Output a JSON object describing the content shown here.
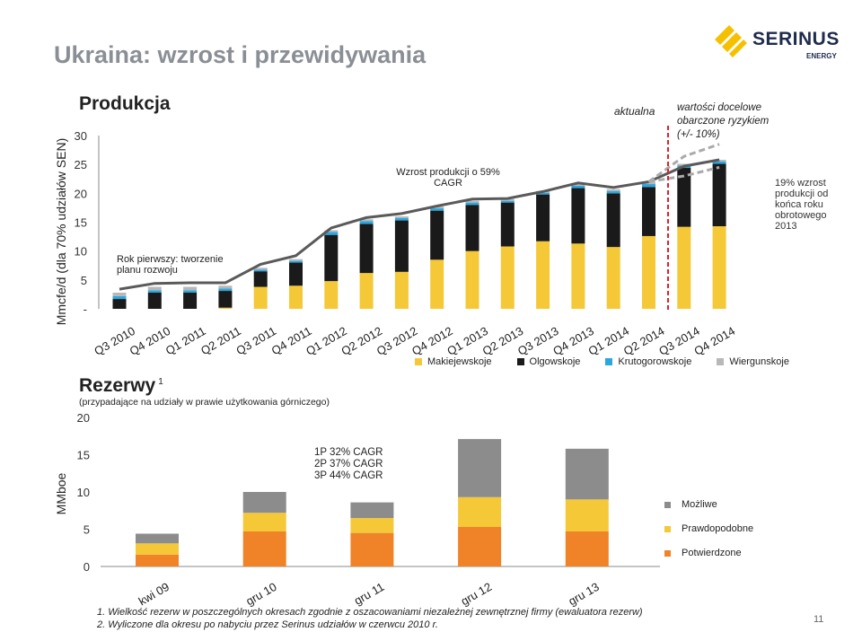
{
  "title": "Ukraina: wzrost i przewidywania",
  "logo": {
    "name": "SERINUS",
    "sub": "ENERGY"
  },
  "page_number": "11",
  "colors": {
    "makiejewskoje": "#f5c838",
    "olgowskoje": "#1a1a1a",
    "krutogorowskoje": "#2aa7e0",
    "wiergunskoje": "#b8b8b8",
    "mozliwe": "#8c8c8c",
    "prawdopodobne": "#f5c838",
    "potwierdzone": "#f08228",
    "line": "#5a5a5a",
    "title": "#8a8f96",
    "red_divider": "#e0202a"
  },
  "top": {
    "heading": "Produkcja",
    "actual_label": "aktualna",
    "target_label": "wartości docelowe obarczone ryzykiem (+/- 10%)",
    "annot_start": "Rok pierwszy: tworzenie planu rozwoju",
    "annot_cagr": "Wzrost produkcji o 59% CAGR",
    "annot_right": "19% wzrost produkcji od końca roku obrotowego 2013",
    "legend": [
      "Makiejewskoje",
      "Olgowskoje",
      "Krutogorowskoje",
      "Wiergunskoje"
    ]
  },
  "bottom": {
    "heading": "Rezerwy",
    "heading_sup": "1",
    "subheading": "(przypadające na udziały w prawie użytkowania górniczego)",
    "cagr_lines": [
      "1P 32% CAGR",
      "2P 37% CAGR",
      "3P 44% CAGR"
    ],
    "legend": [
      "Możliwe",
      "Prawdopodobne",
      "Potwierdzone"
    ]
  },
  "footnotes": [
    "1.  Wielkość rezerw w poszczególnych okresach zgodnie z oszacowaniami niezależnej zewnętrznej firmy (ewaluatora rezerw)",
    "2.  Wyliczone dla okresu po nabyciu przez Serinus udziałów w czerwcu 2010 r."
  ],
  "chart_data": [
    {
      "type": "bar",
      "stacked": true,
      "ylabel": "Mmcfe/d  (dla 70% udziałów SEN)",
      "ylim": [
        0,
        30
      ],
      "yticks": [
        "-",
        "5",
        "10",
        "15",
        "20",
        "25",
        "30"
      ],
      "categories": [
        "Q3 2010",
        "Q4 2010",
        "Q1 2011",
        "Q2 2011",
        "Q3 2011",
        "Q4 2011",
        "Q1 2012",
        "Q2 2012",
        "Q3 2012",
        "Q4 2012",
        "Q1 2013",
        "Q2 2013",
        "Q3 2013",
        "Q4 2013",
        "Q1 2014",
        "Q2 2014",
        "Q3 2014",
        "Q4 2014"
      ],
      "series": [
        {
          "name": "Makiejewskoje",
          "values": [
            0,
            0,
            0,
            0.2,
            3.8,
            4.0,
            4.8,
            6.2,
            6.4,
            8.5,
            10.0,
            10.8,
            11.7,
            11.3,
            10.7,
            12.6,
            14.2,
            14.3
          ]
        },
        {
          "name": "Olgowskoje",
          "values": [
            1.7,
            2.8,
            2.8,
            2.9,
            2.7,
            4.0,
            8.0,
            8.5,
            8.9,
            8.5,
            8.0,
            7.6,
            8.1,
            9.6,
            9.3,
            8.5,
            10.2,
            10.8
          ]
        },
        {
          "name": "Krutogorowskoje",
          "values": [
            0.5,
            0.4,
            0.4,
            0.4,
            0.3,
            0.3,
            0.5,
            0.5,
            0.4,
            0.4,
            0.4,
            0.3,
            0.3,
            0.4,
            0.4,
            0.5,
            0.4,
            0.4
          ]
        },
        {
          "name": "Wiergunskoje",
          "values": [
            0.6,
            0.6,
            0.6,
            0.5,
            0.3,
            0.3,
            0.3,
            0.3,
            0.3,
            0.3,
            0.3,
            0.3,
            0.3,
            0.3,
            0.3,
            0.3,
            0.3,
            0.3
          ]
        }
      ],
      "line_total": [
        3.4,
        4.4,
        4.5,
        4.5,
        7.7,
        9.2,
        14.0,
        15.8,
        16.5,
        17.8,
        19.0,
        19.1,
        20.3,
        21.8,
        21.0,
        22.0,
        24.7,
        25.8
      ],
      "target_high": [
        22.0,
        26.4,
        28.5
      ],
      "target_low": [
        22.0,
        23.0,
        24.5
      ]
    },
    {
      "type": "bar",
      "stacked": true,
      "ylabel": "MMboe",
      "ylim": [
        0,
        20
      ],
      "yticks": [
        "0",
        "5",
        "10",
        "15",
        "20"
      ],
      "categories": [
        "kwi 09",
        "gru 10",
        "gru 11",
        "gru 12",
        "gru 13"
      ],
      "series": [
        {
          "name": "Potwierdzone",
          "values": [
            1.6,
            4.7,
            4.5,
            5.3,
            4.7
          ]
        },
        {
          "name": "Prawdopodobne",
          "values": [
            1.5,
            2.5,
            2.0,
            4.0,
            4.3
          ]
        },
        {
          "name": "Możliwe",
          "values": [
            1.3,
            2.8,
            2.1,
            7.8,
            6.8
          ]
        }
      ]
    }
  ]
}
